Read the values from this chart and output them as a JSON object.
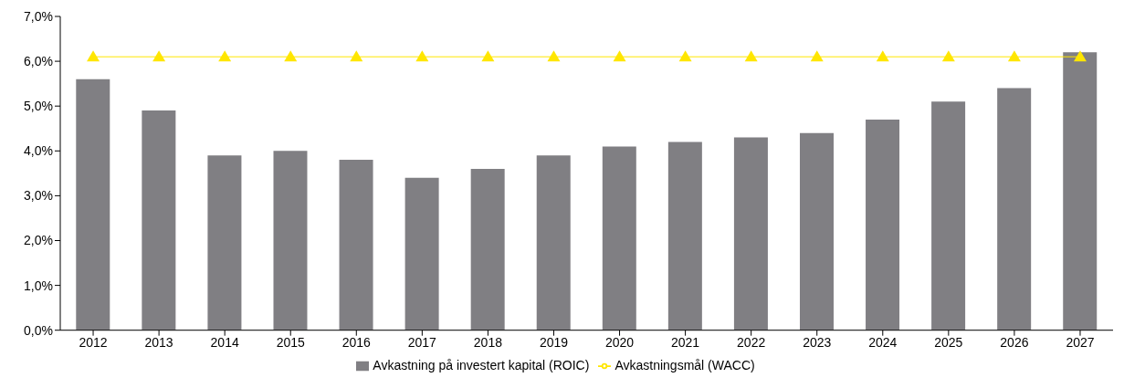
{
  "chart_data": {
    "type": "bar",
    "categories": [
      "2012",
      "2013",
      "2014",
      "2015",
      "2016",
      "2017",
      "2018",
      "2019",
      "2020",
      "2021",
      "2022",
      "2023",
      "2024",
      "2025",
      "2026",
      "2027"
    ],
    "series": [
      {
        "name": "Avkastning på investert kapital (ROIC)",
        "type": "bar",
        "color": "#807f83",
        "values": [
          5.6,
          4.9,
          3.9,
          4.0,
          3.8,
          3.4,
          3.6,
          3.9,
          4.1,
          4.2,
          4.3,
          4.4,
          4.7,
          5.1,
          5.4,
          6.2
        ]
      },
      {
        "name": "Avkastningsmål (WACC)",
        "type": "line",
        "color": "#ffe600",
        "marker": "triangle",
        "values": [
          6.1,
          6.1,
          6.1,
          6.1,
          6.1,
          6.1,
          6.1,
          6.1,
          6.1,
          6.1,
          6.1,
          6.1,
          6.1,
          6.1,
          6.1,
          6.1
        ]
      }
    ],
    "ylim": [
      0,
      7
    ],
    "yticks": [
      {
        "value": 0,
        "label": "0,0%"
      },
      {
        "value": 1,
        "label": "1,0%"
      },
      {
        "value": 2,
        "label": "2,0%"
      },
      {
        "value": 3,
        "label": "3,0%"
      },
      {
        "value": 4,
        "label": "4,0%"
      },
      {
        "value": 5,
        "label": "5,0%"
      },
      {
        "value": 6,
        "label": "6,0%"
      },
      {
        "value": 7,
        "label": "7,0%"
      }
    ],
    "grid": false,
    "legend": "bottom"
  }
}
